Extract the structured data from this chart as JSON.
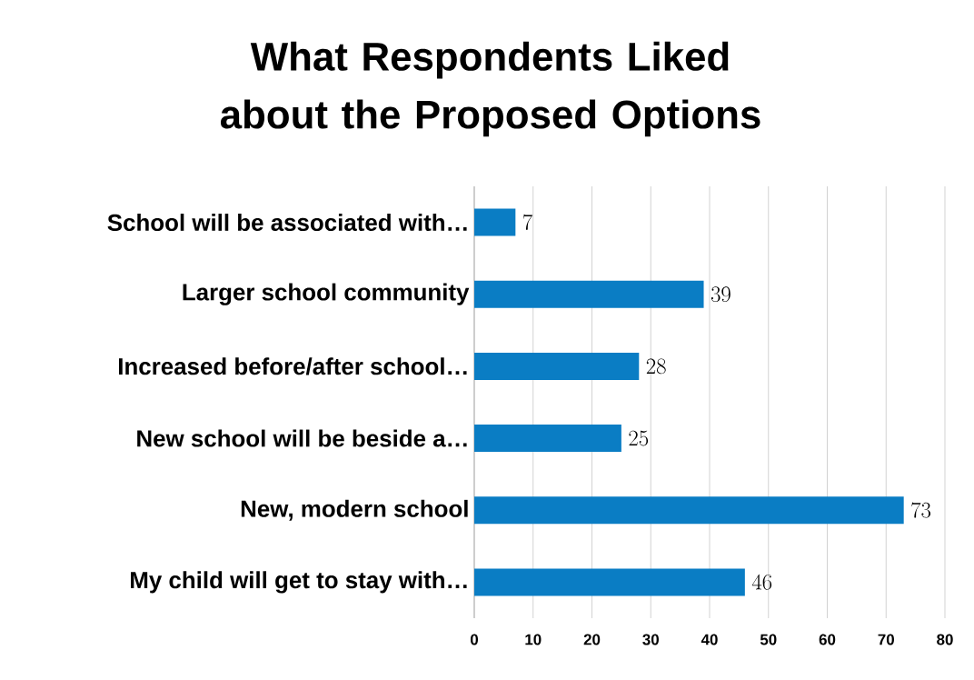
{
  "chart_data": {
    "type": "bar",
    "orientation": "horizontal",
    "title": "What Respondents Liked about the Proposed Options",
    "categories": [
      "School will be associated with…",
      "Larger school community",
      "Increased before/after school…",
      "New school will be beside a…",
      "New, modern school",
      "My child will get to stay with…"
    ],
    "values": [
      7,
      39,
      28,
      25,
      73,
      46
    ],
    "color": "#0a7dc4",
    "xlim": [
      0,
      80
    ],
    "xticks": [
      0,
      10,
      20,
      30,
      40,
      50,
      60,
      70,
      80
    ],
    "grid": "x",
    "data_labels": true
  }
}
